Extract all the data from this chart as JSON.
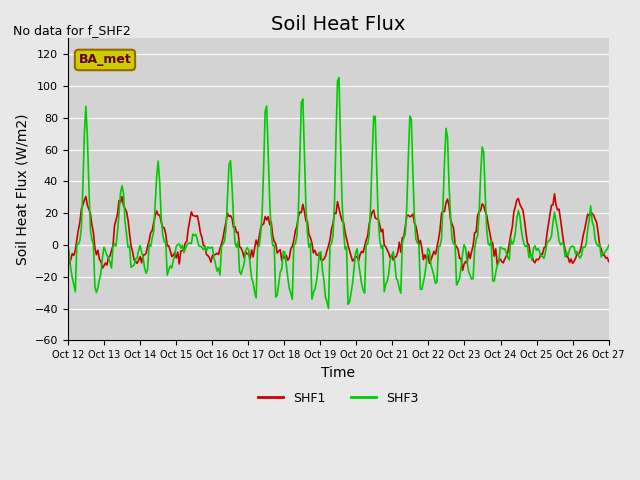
{
  "title": "Soil Heat Flux",
  "top_left_text": "No data for f_SHF2",
  "ylabel": "Soil Heat Flux (W/m2)",
  "xlabel": "Time",
  "ylim": [
    -60,
    130
  ],
  "yticks": [
    -60,
    -40,
    -20,
    0,
    20,
    40,
    60,
    80,
    100,
    120
  ],
  "background_color": "#e8e8e8",
  "plot_bg_color": "#d8d8d8",
  "legend_label1": "SHF1",
  "legend_label2": "SHF3",
  "line_color1": "#cc0000",
  "line_color2": "#00cc00",
  "legend_box_color": "#cccc00",
  "legend_box_text": "BA_met",
  "x_tick_labels": [
    "Oct 12",
    "Oct 13",
    "Oct 14",
    "Oct 15",
    "Oct 16",
    "Oct 17",
    "Oct 18",
    "Oct 19",
    "Oct 20",
    "Oct 21",
    "Oct 22",
    "Oct 23",
    "Oct 24",
    "Oct 25",
    "Oct 26",
    "Oct 27"
  ],
  "title_fontsize": 14,
  "label_fontsize": 10,
  "tick_fontsize": 8
}
